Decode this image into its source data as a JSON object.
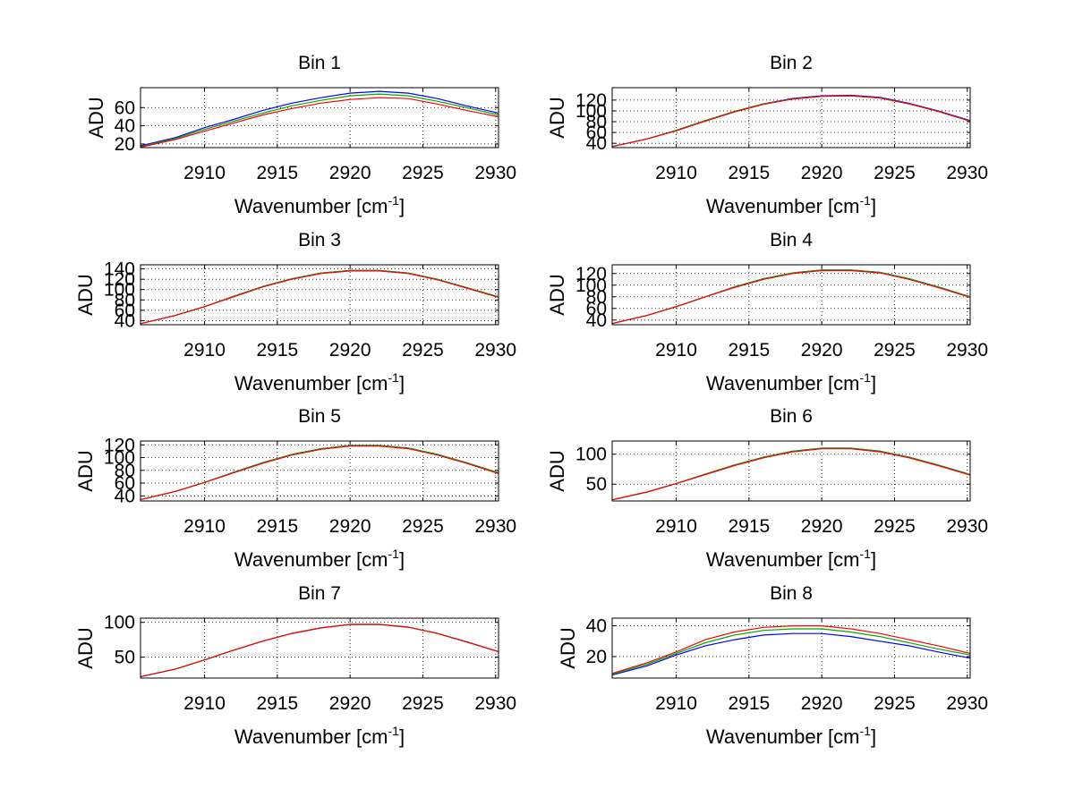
{
  "chart_data": [
    {
      "type": "line",
      "title": "Bin 1",
      "xlabel": "Wavenumber [cm",
      "xlabel_sup": "-1",
      "xlabel_close": "]",
      "ylabel": "ADU",
      "xlim": [
        2905.6,
        2930.2
      ],
      "ylim": [
        16,
        82
      ],
      "xticks": [
        "2910",
        "2915",
        "2920",
        "2925",
        "2930"
      ],
      "yticks": [
        "20",
        "40",
        "60"
      ],
      "grid": true,
      "series": [
        {
          "color": "#0000ff",
          "x": [
            2905.6,
            2908,
            2910,
            2912,
            2914,
            2916,
            2918,
            2920,
            2922,
            2924,
            2926,
            2928,
            2930.2
          ],
          "values": [
            18,
            27,
            38,
            47,
            57,
            65,
            71,
            76,
            78,
            76,
            70,
            62,
            54
          ]
        },
        {
          "color": "#00aa00",
          "x": [
            2905.6,
            2908,
            2910,
            2912,
            2914,
            2916,
            2918,
            2920,
            2922,
            2924,
            2926,
            2928,
            2930.2
          ],
          "values": [
            17,
            26,
            36,
            45,
            54,
            62,
            68,
            73,
            75,
            73,
            67,
            60,
            52
          ]
        },
        {
          "color": "#ff0000",
          "x": [
            2905.6,
            2908,
            2910,
            2912,
            2914,
            2916,
            2918,
            2920,
            2922,
            2924,
            2926,
            2928,
            2930.2
          ],
          "values": [
            16.5,
            25,
            34,
            43,
            52,
            59,
            65,
            69,
            71,
            70,
            64,
            57,
            50
          ]
        }
      ]
    },
    {
      "type": "line",
      "title": "Bin 2",
      "xlabel": "Wavenumber [cm",
      "xlabel_sup": "-1",
      "xlabel_close": "]",
      "ylabel": "ADU",
      "xlim": [
        2905.6,
        2930.2
      ],
      "ylim": [
        32,
        143
      ],
      "xticks": [
        "2910",
        "2915",
        "2920",
        "2925",
        "2930"
      ],
      "yticks": [
        "40",
        "60",
        "80",
        "100",
        "120"
      ],
      "grid": true,
      "series": [
        {
          "color": "#0000ff",
          "x": [
            2905.6,
            2908,
            2910,
            2912,
            2914,
            2916,
            2918,
            2920,
            2922,
            2924,
            2926,
            2928,
            2930.2
          ],
          "values": [
            34,
            48,
            64,
            82,
            99,
            113,
            123,
            128,
            129,
            125,
            114,
            100,
            82
          ]
        },
        {
          "color": "#00aa00",
          "x": [
            2905.6,
            2908,
            2910,
            2912,
            2914,
            2916,
            2918,
            2920,
            2922,
            2924,
            2926,
            2928,
            2930.2
          ],
          "values": [
            34,
            48,
            64,
            82,
            99,
            113,
            122,
            127,
            128,
            124,
            113,
            99,
            81
          ]
        },
        {
          "color": "#ff0000",
          "x": [
            2905.6,
            2908,
            2910,
            2912,
            2914,
            2916,
            2918,
            2920,
            2922,
            2924,
            2926,
            2928,
            2930.2
          ],
          "values": [
            34,
            48,
            63,
            81,
            98,
            112,
            122,
            127,
            128,
            124,
            113,
            99,
            81
          ]
        }
      ]
    },
    {
      "type": "line",
      "title": "Bin 3",
      "xlabel": "Wavenumber [cm",
      "xlabel_sup": "-1",
      "xlabel_close": "]",
      "ylabel": "ADU",
      "xlim": [
        2905.6,
        2930.2
      ],
      "ylim": [
        32,
        148
      ],
      "xticks": [
        "2910",
        "2915",
        "2920",
        "2925",
        "2930"
      ],
      "yticks": [
        "40",
        "60",
        "80",
        "100",
        "120",
        "140"
      ],
      "grid": true,
      "series": [
        {
          "color": "#0000ff",
          "x": [
            2905.6,
            2908,
            2910,
            2912,
            2914,
            2916,
            2918,
            2920,
            2922,
            2924,
            2926,
            2928,
            2930.2
          ],
          "values": [
            34,
            50,
            67,
            87,
            106,
            121,
            132,
            137,
            137,
            132,
            120,
            104,
            86
          ]
        },
        {
          "color": "#00aa00",
          "x": [
            2905.6,
            2908,
            2910,
            2912,
            2914,
            2916,
            2918,
            2920,
            2922,
            2924,
            2926,
            2928,
            2930.2
          ],
          "values": [
            34,
            50,
            67,
            87,
            106,
            121,
            132,
            137,
            137,
            132,
            120,
            104,
            86
          ]
        },
        {
          "color": "#ff0000",
          "x": [
            2905.6,
            2908,
            2910,
            2912,
            2914,
            2916,
            2918,
            2920,
            2922,
            2924,
            2926,
            2928,
            2930.2
          ],
          "values": [
            34,
            50,
            67,
            86,
            105,
            120,
            131,
            136,
            136,
            131,
            119,
            103,
            85
          ]
        }
      ]
    },
    {
      "type": "line",
      "title": "Bin 4",
      "xlabel": "Wavenumber [cm",
      "xlabel_sup": "-1",
      "xlabel_close": "]",
      "ylabel": "ADU",
      "xlim": [
        2905.6,
        2930.2
      ],
      "ylim": [
        32,
        135
      ],
      "xticks": [
        "2910",
        "2915",
        "2920",
        "2925",
        "2930"
      ],
      "yticks": [
        "40",
        "60",
        "80",
        "100",
        "120"
      ],
      "grid": true,
      "series": [
        {
          "color": "#0000ff",
          "x": [
            2905.6,
            2908,
            2910,
            2912,
            2914,
            2916,
            2918,
            2920,
            2922,
            2924,
            2926,
            2928,
            2930.2
          ],
          "values": [
            34,
            48,
            63,
            80,
            97,
            111,
            121,
            126,
            126,
            122,
            111,
            97,
            80
          ]
        },
        {
          "color": "#00aa00",
          "x": [
            2905.6,
            2908,
            2910,
            2912,
            2914,
            2916,
            2918,
            2920,
            2922,
            2924,
            2926,
            2928,
            2930.2
          ],
          "values": [
            34,
            48,
            63,
            80,
            97,
            111,
            121,
            126,
            126,
            122,
            111,
            97,
            80
          ]
        },
        {
          "color": "#ff0000",
          "x": [
            2905.6,
            2908,
            2910,
            2912,
            2914,
            2916,
            2918,
            2920,
            2922,
            2924,
            2926,
            2928,
            2930.2
          ],
          "values": [
            34,
            48,
            63,
            80,
            96,
            110,
            120,
            125,
            125,
            121,
            110,
            96,
            79
          ]
        }
      ]
    },
    {
      "type": "line",
      "title": "Bin 5",
      "xlabel": "Wavenumber [cm",
      "xlabel_sup": "-1",
      "xlabel_close": "]",
      "ylabel": "ADU",
      "xlim": [
        2905.6,
        2930.2
      ],
      "ylim": [
        32,
        126
      ],
      "xticks": [
        "2910",
        "2915",
        "2920",
        "2925",
        "2930"
      ],
      "yticks": [
        "40",
        "60",
        "80",
        "100",
        "120"
      ],
      "grid": true,
      "series": [
        {
          "color": "#0000ff",
          "x": [
            2905.6,
            2908,
            2910,
            2912,
            2914,
            2916,
            2918,
            2920,
            2922,
            2924,
            2926,
            2928,
            2930.2
          ],
          "values": [
            34,
            47,
            61,
            77,
            92,
            105,
            114,
            119,
            119,
            115,
            105,
            92,
            76
          ]
        },
        {
          "color": "#00aa00",
          "x": [
            2905.6,
            2908,
            2910,
            2912,
            2914,
            2916,
            2918,
            2920,
            2922,
            2924,
            2926,
            2928,
            2930.2
          ],
          "values": [
            34,
            47,
            61,
            77,
            92,
            105,
            114,
            119,
            119,
            115,
            105,
            92,
            76
          ]
        },
        {
          "color": "#ff0000",
          "x": [
            2905.6,
            2908,
            2910,
            2912,
            2914,
            2916,
            2918,
            2920,
            2922,
            2924,
            2926,
            2928,
            2930.2
          ],
          "values": [
            34,
            47,
            61,
            76,
            91,
            104,
            113,
            118,
            118,
            114,
            104,
            91,
            75
          ]
        }
      ]
    },
    {
      "type": "line",
      "title": "Bin 6",
      "xlabel": "Wavenumber [cm",
      "xlabel_sup": "-1",
      "xlabel_close": "]",
      "ylabel": "ADU",
      "xlim": [
        2905.6,
        2930.2
      ],
      "ylim": [
        22,
        122
      ],
      "xticks": [
        "2910",
        "2915",
        "2920",
        "2925",
        "2930"
      ],
      "yticks": [
        "50",
        "100"
      ],
      "grid": true,
      "series": [
        {
          "color": "#0000ff",
          "x": [
            2905.6,
            2908,
            2910,
            2912,
            2914,
            2916,
            2918,
            2920,
            2922,
            2924,
            2926,
            2928,
            2930.2
          ],
          "values": [
            24,
            37,
            51,
            67,
            82,
            95,
            105,
            110,
            110,
            105,
            95,
            82,
            66
          ]
        },
        {
          "color": "#00aa00",
          "x": [
            2905.6,
            2908,
            2910,
            2912,
            2914,
            2916,
            2918,
            2920,
            2922,
            2924,
            2926,
            2928,
            2930.2
          ],
          "values": [
            24,
            37,
            51,
            67,
            82,
            95,
            105,
            110,
            110,
            105,
            95,
            82,
            66
          ]
        },
        {
          "color": "#ff0000",
          "x": [
            2905.6,
            2908,
            2910,
            2912,
            2914,
            2916,
            2918,
            2920,
            2922,
            2924,
            2926,
            2928,
            2930.2
          ],
          "values": [
            24,
            37,
            51,
            66,
            81,
            94,
            104,
            109,
            109,
            104,
            94,
            81,
            65
          ]
        }
      ]
    },
    {
      "type": "line",
      "title": "Bin 7",
      "xlabel": "Wavenumber [cm",
      "xlabel_sup": "-1",
      "xlabel_close": "]",
      "ylabel": "ADU",
      "xlim": [
        2905.6,
        2930.2
      ],
      "ylim": [
        20,
        106
      ],
      "xticks": [
        "2910",
        "2915",
        "2920",
        "2925",
        "2930"
      ],
      "yticks": [
        "50",
        "100"
      ],
      "grid": true,
      "series": [
        {
          "color": "#0000ff",
          "x": [
            2905.6,
            2908,
            2910,
            2912,
            2914,
            2916,
            2918,
            2920,
            2922,
            2924,
            2926,
            2928,
            2930.2
          ],
          "values": [
            22,
            33,
            46,
            60,
            73,
            84,
            92,
            97,
            97,
            93,
            84,
            72,
            58
          ]
        },
        {
          "color": "#00aa00",
          "x": [
            2905.6,
            2908,
            2910,
            2912,
            2914,
            2916,
            2918,
            2920,
            2922,
            2924,
            2926,
            2928,
            2930.2
          ],
          "values": [
            22,
            33,
            46,
            60,
            73,
            84,
            92,
            97,
            97,
            93,
            84,
            72,
            58
          ]
        },
        {
          "color": "#ff0000",
          "x": [
            2905.6,
            2908,
            2910,
            2912,
            2914,
            2916,
            2918,
            2920,
            2922,
            2924,
            2926,
            2928,
            2930.2
          ],
          "values": [
            22,
            33,
            46,
            60,
            73,
            84,
            92,
            97,
            97,
            93,
            84,
            72,
            58
          ]
        }
      ]
    },
    {
      "type": "line",
      "title": "Bin 8",
      "xlabel": "Wavenumber [cm",
      "xlabel_sup": "-1",
      "xlabel_close": "]",
      "ylabel": "ADU",
      "xlim": [
        2905.6,
        2930.2
      ],
      "ylim": [
        6,
        45
      ],
      "xticks": [
        "2910",
        "2915",
        "2920",
        "2925",
        "2930"
      ],
      "yticks": [
        "20",
        "40"
      ],
      "grid": true,
      "series": [
        {
          "color": "#0000ff",
          "x": [
            2905.6,
            2908,
            2910,
            2912,
            2914,
            2916,
            2918,
            2920,
            2922,
            2924,
            2926,
            2928,
            2930.2
          ],
          "values": [
            8,
            14,
            21,
            27,
            31,
            34,
            35,
            35,
            33,
            30,
            27,
            23,
            19
          ]
        },
        {
          "color": "#00aa00",
          "x": [
            2905.6,
            2908,
            2910,
            2912,
            2914,
            2916,
            2918,
            2920,
            2922,
            2924,
            2926,
            2928,
            2930.2
          ],
          "values": [
            8.5,
            15,
            22,
            29,
            34,
            37,
            38,
            38,
            36,
            33,
            29,
            25,
            21
          ]
        },
        {
          "color": "#ff0000",
          "x": [
            2905.6,
            2908,
            2910,
            2912,
            2914,
            2916,
            2918,
            2920,
            2922,
            2924,
            2926,
            2928,
            2930.2
          ],
          "values": [
            9,
            16,
            23,
            31,
            36,
            39,
            40,
            40,
            38,
            35,
            31,
            27,
            22
          ]
        }
      ]
    }
  ]
}
